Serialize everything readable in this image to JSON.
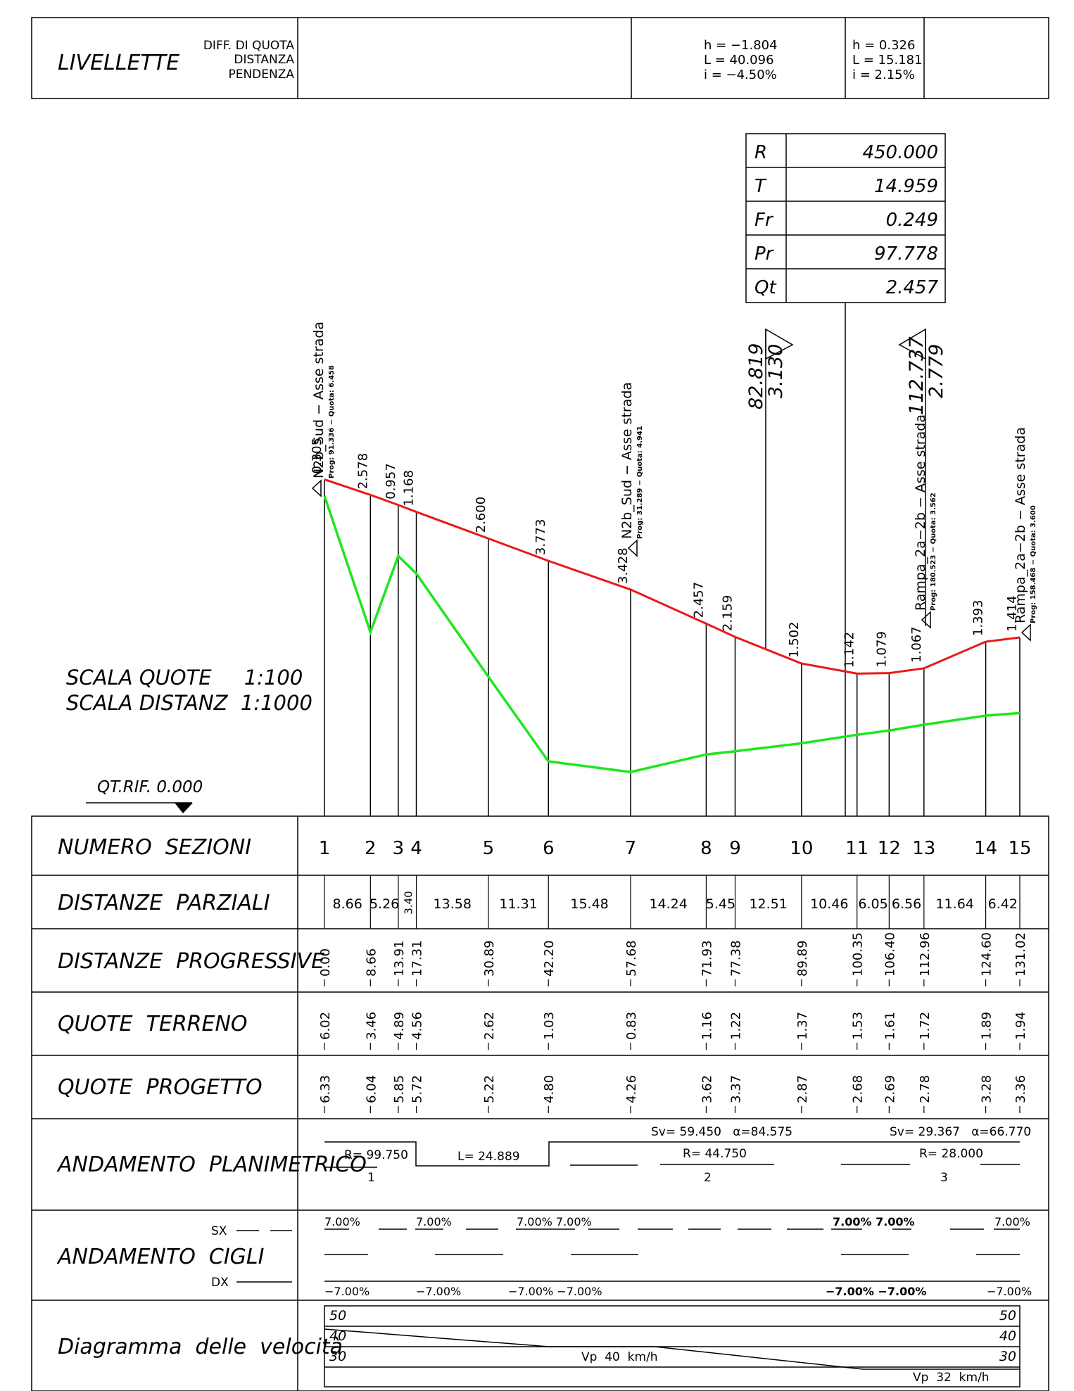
{
  "header": {
    "title": "LIVELLETTE",
    "labels": [
      "DIFF. DI QUOTA",
      "DISTANZA",
      "PENDENZA"
    ],
    "slopes": [
      {
        "h": "h = −1.804",
        "L": "L = 40.096",
        "i": "i = −4.50%"
      },
      {
        "h": "h = 0.326",
        "L": "L = 15.181",
        "i": "i = 2.15%"
      }
    ]
  },
  "curve_table": [
    {
      "key": "R",
      "value": "450.000"
    },
    {
      "key": "T",
      "value": "14.959"
    },
    {
      "key": "Fr",
      "value": "0.249"
    },
    {
      "key": "Pr",
      "value": "97.778"
    },
    {
      "key": "Qt",
      "value": "2.457"
    }
  ],
  "vertex_markers": [
    {
      "prog": "82.819",
      "quota": "3.130"
    },
    {
      "prog": "112.737",
      "quota": "2.779"
    }
  ],
  "scale": {
    "quote": "SCALA QUOTE     1:100",
    "distanze": "SCALA DISTANZ  1:1000",
    "reference": "QT.RIF. 0.000"
  },
  "junctions": [
    {
      "name": "N2b_Sud − Asse strada",
      "sub": "Prog: 91.336 − Quota: 6.458"
    },
    {
      "name": "N2b_Sud − Asse strada",
      "sub": "Prog: 31.289 − Quota: 4.941"
    },
    {
      "name": "Rampa_2a−2b − Asse strada",
      "sub": "Prog: 180.523 − Quota: 3.562"
    },
    {
      "name": "Rampa_2a−2b − Asse strada",
      "sub": "Prog: 158.468 − Quota: 3.600"
    }
  ],
  "sections": [
    {
      "num": "1",
      "prog": 0.0,
      "ground": 6.02,
      "design": 6.33,
      "fill": "0.305",
      "prog_s": "0.00",
      "ground_s": "6.02",
      "design_s": "6.33"
    },
    {
      "num": "2",
      "prog": 8.66,
      "ground": 3.46,
      "design": 6.04,
      "fill": "2.578",
      "prog_s": "8.66",
      "ground_s": "3.46",
      "design_s": "6.04"
    },
    {
      "num": "3",
      "prog": 13.91,
      "ground": 4.89,
      "design": 5.85,
      "fill": "0.957",
      "prog_s": "13.91",
      "ground_s": "4.89",
      "design_s": "5.85"
    },
    {
      "num": "4",
      "prog": 17.31,
      "ground": 4.56,
      "design": 5.72,
      "fill": "1.168",
      "prog_s": "17.31",
      "ground_s": "4.56",
      "design_s": "5.72"
    },
    {
      "num": "5",
      "prog": 30.89,
      "ground": 2.62,
      "design": 5.22,
      "fill": "2.600",
      "prog_s": "30.89",
      "ground_s": "2.62",
      "design_s": "5.22"
    },
    {
      "num": "6",
      "prog": 42.2,
      "ground": 1.03,
      "design": 4.8,
      "fill": "3.773",
      "prog_s": "42.20",
      "ground_s": "1.03",
      "design_s": "4.80"
    },
    {
      "num": "7",
      "prog": 57.68,
      "ground": 0.83,
      "design": 4.26,
      "fill": "3.428",
      "prog_s": "57.68",
      "ground_s": "0.83",
      "design_s": "4.26"
    },
    {
      "num": "8",
      "prog": 71.93,
      "ground": 1.16,
      "design": 3.62,
      "fill": "2.457",
      "prog_s": "71.93",
      "ground_s": "1.16",
      "design_s": "3.62"
    },
    {
      "num": "9",
      "prog": 77.38,
      "ground": 1.22,
      "design": 3.37,
      "fill": "2.159",
      "prog_s": "77.38",
      "ground_s": "1.22",
      "design_s": "3.37"
    },
    {
      "num": "10",
      "prog": 89.89,
      "ground": 1.37,
      "design": 2.87,
      "fill": "1.502",
      "prog_s": "89.89",
      "ground_s": "1.37",
      "design_s": "2.87"
    },
    {
      "num": "11",
      "prog": 100.35,
      "ground": 1.53,
      "design": 2.68,
      "fill": "1.142",
      "prog_s": "100.35",
      "ground_s": "1.53",
      "design_s": "2.68"
    },
    {
      "num": "12",
      "prog": 106.4,
      "ground": 1.61,
      "design": 2.69,
      "fill": "1.079",
      "prog_s": "106.40",
      "ground_s": "1.61",
      "design_s": "2.69"
    },
    {
      "num": "13",
      "prog": 112.96,
      "ground": 1.72,
      "design": 2.78,
      "fill": "1.067",
      "prog_s": "112.96",
      "ground_s": "1.72",
      "design_s": "2.78"
    },
    {
      "num": "14",
      "prog": 124.6,
      "ground": 1.89,
      "design": 3.28,
      "fill": "1.393",
      "prog_s": "124.60",
      "ground_s": "1.89",
      "design_s": "3.28"
    },
    {
      "num": "15",
      "prog": 131.02,
      "ground": 1.94,
      "design": 3.36,
      "fill": "1.414",
      "prog_s": "131.02",
      "ground_s": "1.94",
      "design_s": "3.36"
    }
  ],
  "partials": [
    "8.66",
    "5.26",
    "3.40",
    "13.58",
    "11.31",
    "15.48",
    "14.24",
    "5.45",
    "12.51",
    "10.46",
    "6.05",
    "6.56",
    "11.64",
    "6.42"
  ],
  "row_labels": {
    "numero": "NUMERO  SEZIONI",
    "parziali": "DISTANZE  PARZIALI",
    "progressive": "DISTANZE  PROGRESSIVE",
    "terreno": "QUOTE  TERRENO",
    "progetto": "QUOTE  PROGETTO",
    "planimetrico": "ANDAMENTO  PLANIMETRICO",
    "cigli": "ANDAMENTO  CIGLI",
    "sx": "SX",
    "dx": "DX",
    "velocita": "Diagramma  delle  velocità"
  },
  "planimetrico": {
    "curves": [
      {
        "num": "1",
        "R": "R= 99.750"
      },
      {
        "num": "2",
        "R": "R= 44.750",
        "sv": "Sv= 59.450   α=84.575"
      },
      {
        "num": "3",
        "R": "R= 28.000",
        "sv": "Sv= 29.367   α=66.770"
      }
    ],
    "straight": "L= 24.889"
  },
  "cigli": {
    "sx": [
      "7.00%",
      "7.00%",
      "7.00% 7.00%",
      "7.00% 7.00%",
      "7.00%"
    ],
    "dx": [
      "−7.00%",
      "−7.00%",
      "−7.00% −7.00%",
      "−7.00% −7.00%",
      "−7.00%"
    ]
  },
  "velocita": {
    "levels": [
      "50",
      "40",
      "30"
    ],
    "vp1": "Vp  40  km/h",
    "vp2": "Vp  32  km/h"
  },
  "chart_data": {
    "type": "line",
    "xlabel": "",
    "ylabel": "",
    "series": [
      {
        "values_x": [
          0.0,
          8.66,
          13.91,
          17.31,
          30.89,
          42.2,
          57.68,
          71.93,
          77.38,
          89.89,
          100.35,
          106.4,
          112.96,
          124.6,
          131.02
        ],
        "values_y": [
          6.33,
          6.04,
          5.85,
          5.72,
          5.22,
          4.8,
          4.26,
          3.62,
          3.37,
          2.87,
          2.68,
          2.69,
          2.78,
          3.28,
          3.36
        ]
      },
      {
        "values_x": [
          0.0,
          8.66,
          13.91,
          17.31,
          30.89,
          42.2,
          57.68,
          71.93,
          77.38,
          89.89,
          100.35,
          106.4,
          112.96,
          124.6,
          131.02
        ],
        "values_y": [
          6.02,
          3.46,
          4.89,
          4.56,
          2.62,
          1.03,
          0.83,
          1.16,
          1.22,
          1.37,
          1.53,
          1.61,
          1.72,
          1.89,
          1.94
        ]
      }
    ]
  }
}
